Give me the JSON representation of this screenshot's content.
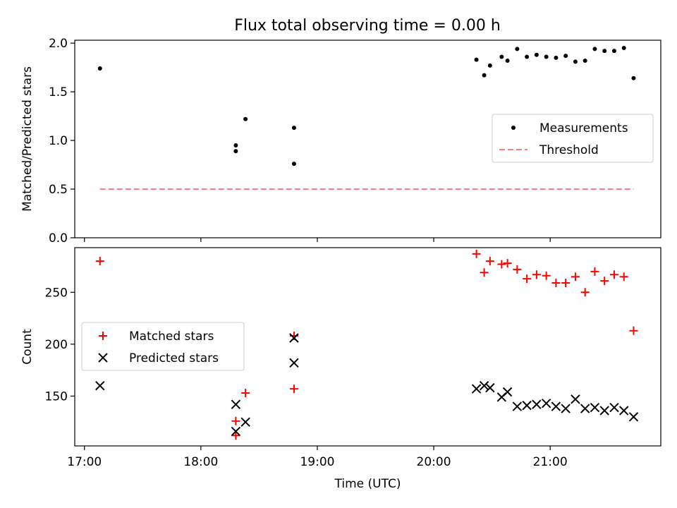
{
  "title": "Flux total observing time = 0.00 h",
  "chart_data": [
    {
      "type": "scatter",
      "ylabel": "Matched/Predicted stars",
      "xlabel": "",
      "ylim": [
        0,
        2.03
      ],
      "xlim": [
        "16:55",
        "21:57"
      ],
      "yticks": [
        0.0,
        0.5,
        1.0,
        1.5,
        2.0
      ],
      "ytick_labels": [
        "0.0",
        "0.5",
        "1.0",
        "1.5",
        "2.0"
      ],
      "legend": {
        "placement": "center-right",
        "entries": [
          "Measurements",
          "Threshold"
        ]
      },
      "series": [
        {
          "name": "Measurements",
          "color": "#000000",
          "marker": "dot",
          "points": [
            {
              "x": "17:08",
              "y": 1.74
            },
            {
              "x": "18:18",
              "y": 0.95
            },
            {
              "x": "18:18",
              "y": 0.89
            },
            {
              "x": "18:23",
              "y": 1.22
            },
            {
              "x": "18:48",
              "y": 1.13
            },
            {
              "x": "18:48",
              "y": 0.76
            },
            {
              "x": "20:22",
              "y": 1.83
            },
            {
              "x": "20:26",
              "y": 1.67
            },
            {
              "x": "20:29",
              "y": 1.77
            },
            {
              "x": "20:35",
              "y": 1.86
            },
            {
              "x": "20:38",
              "y": 1.82
            },
            {
              "x": "20:43",
              "y": 1.94
            },
            {
              "x": "20:48",
              "y": 1.86
            },
            {
              "x": "20:53",
              "y": 1.88
            },
            {
              "x": "20:58",
              "y": 1.86
            },
            {
              "x": "21:03",
              "y": 1.85
            },
            {
              "x": "21:08",
              "y": 1.87
            },
            {
              "x": "21:13",
              "y": 1.81
            },
            {
              "x": "21:18",
              "y": 1.82
            },
            {
              "x": "21:23",
              "y": 1.94
            },
            {
              "x": "21:28",
              "y": 1.92
            },
            {
              "x": "21:33",
              "y": 1.92
            },
            {
              "x": "21:38",
              "y": 1.95
            },
            {
              "x": "21:43",
              "y": 1.64
            }
          ]
        },
        {
          "name": "Threshold",
          "color": "#ff7f7f",
          "style": "dashed",
          "points": [
            {
              "x": "17:08",
              "y": 0.5
            },
            {
              "x": "21:43",
              "y": 0.5
            }
          ]
        }
      ]
    },
    {
      "type": "scatter",
      "ylabel": "Count",
      "xlabel": "Time (UTC)",
      "ylim": [
        102,
        293
      ],
      "xlim": [
        "16:55",
        "21:57"
      ],
      "yticks": [
        150,
        200,
        250
      ],
      "ytick_labels": [
        "150",
        "200",
        "250"
      ],
      "xticks": [
        "17:00",
        "18:00",
        "19:00",
        "20:00",
        "21:00"
      ],
      "xtick_labels": [
        "17:00",
        "18:00",
        "19:00",
        "20:00",
        "21:00"
      ],
      "legend": {
        "placement": "center-left",
        "entries": [
          "Matched stars",
          "Predicted stars"
        ]
      },
      "series": [
        {
          "name": "Matched stars",
          "color": "#ff0000",
          "marker": "plus",
          "points": [
            {
              "x": "17:08",
              "y": 280
            },
            {
              "x": "18:18",
              "y": 126
            },
            {
              "x": "18:18",
              "y": 112
            },
            {
              "x": "18:23",
              "y": 153
            },
            {
              "x": "18:48",
              "y": 208
            },
            {
              "x": "18:48",
              "y": 157
            },
            {
              "x": "20:22",
              "y": 287
            },
            {
              "x": "20:26",
              "y": 269
            },
            {
              "x": "20:29",
              "y": 280
            },
            {
              "x": "20:35",
              "y": 277
            },
            {
              "x": "20:38",
              "y": 278
            },
            {
              "x": "20:43",
              "y": 272
            },
            {
              "x": "20:48",
              "y": 263
            },
            {
              "x": "20:53",
              "y": 267
            },
            {
              "x": "20:58",
              "y": 266
            },
            {
              "x": "21:03",
              "y": 259
            },
            {
              "x": "21:08",
              "y": 259
            },
            {
              "x": "21:13",
              "y": 265
            },
            {
              "x": "21:18",
              "y": 250
            },
            {
              "x": "21:23",
              "y": 270
            },
            {
              "x": "21:28",
              "y": 261
            },
            {
              "x": "21:33",
              "y": 267
            },
            {
              "x": "21:38",
              "y": 265
            },
            {
              "x": "21:43",
              "y": 213
            }
          ]
        },
        {
          "name": "Predicted stars",
          "color": "#000000",
          "marker": "x",
          "points": [
            {
              "x": "17:08",
              "y": 160
            },
            {
              "x": "18:18",
              "y": 142
            },
            {
              "x": "18:18",
              "y": 116
            },
            {
              "x": "18:23",
              "y": 125
            },
            {
              "x": "18:48",
              "y": 206
            },
            {
              "x": "18:48",
              "y": 182
            },
            {
              "x": "20:22",
              "y": 157
            },
            {
              "x": "20:26",
              "y": 160
            },
            {
              "x": "20:29",
              "y": 158
            },
            {
              "x": "20:35",
              "y": 149
            },
            {
              "x": "20:38",
              "y": 154
            },
            {
              "x": "20:43",
              "y": 140
            },
            {
              "x": "20:48",
              "y": 141
            },
            {
              "x": "20:53",
              "y": 142
            },
            {
              "x": "20:58",
              "y": 143
            },
            {
              "x": "21:03",
              "y": 140
            },
            {
              "x": "21:08",
              "y": 138
            },
            {
              "x": "21:13",
              "y": 147
            },
            {
              "x": "21:18",
              "y": 138
            },
            {
              "x": "21:23",
              "y": 139
            },
            {
              "x": "21:28",
              "y": 136
            },
            {
              "x": "21:33",
              "y": 139
            },
            {
              "x": "21:38",
              "y": 136
            },
            {
              "x": "21:43",
              "y": 130
            }
          ]
        }
      ]
    }
  ]
}
